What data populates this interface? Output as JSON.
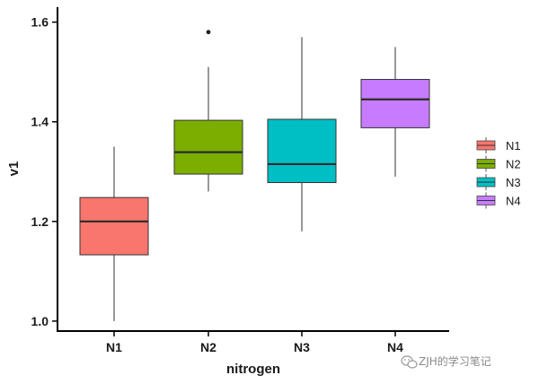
{
  "chart_data": {
    "type": "boxplot",
    "xlabel": "nitrogen",
    "ylabel": "v1",
    "ylim": [
      0.98,
      1.63
    ],
    "yticks": [
      "1.0",
      "1.2",
      "1.4",
      "1.6"
    ],
    "categories": [
      "N1",
      "N2",
      "N3",
      "N4"
    ],
    "boxes": [
      {
        "category": "N1",
        "min": 1.0,
        "q1": 1.133,
        "median": 1.2,
        "q3": 1.248,
        "max": 1.35,
        "outliers": [],
        "color": "#F8766D"
      },
      {
        "category": "N2",
        "min": 1.26,
        "q1": 1.295,
        "median": 1.339,
        "q3": 1.403,
        "max": 1.51,
        "outliers": [
          1.58
        ],
        "color": "#7CAE00"
      },
      {
        "category": "N3",
        "min": 1.18,
        "q1": 1.278,
        "median": 1.315,
        "q3": 1.405,
        "max": 1.57,
        "outliers": [],
        "color": "#00BFC4"
      },
      {
        "category": "N4",
        "min": 1.29,
        "q1": 1.388,
        "median": 1.445,
        "q3": 1.485,
        "max": 1.55,
        "outliers": [],
        "color": "#C77CFF"
      }
    ],
    "legend": {
      "position": "right",
      "entries": [
        "N1",
        "N2",
        "N3",
        "N4"
      ]
    },
    "grid": false
  },
  "watermark": {
    "text": "ZJH的学习笔记",
    "icon": "wechat-icon"
  }
}
